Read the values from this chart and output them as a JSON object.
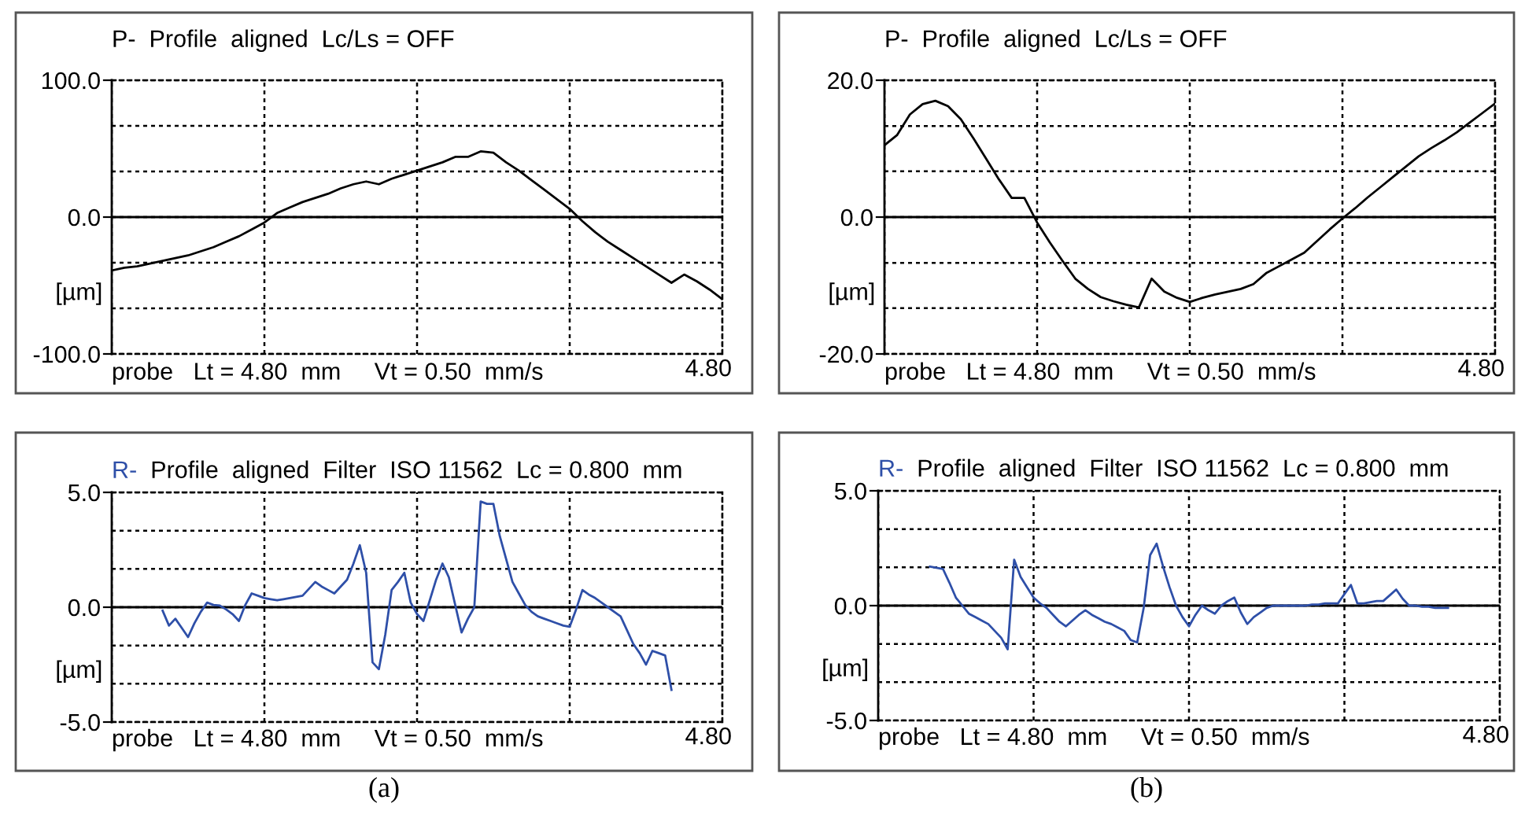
{
  "chart_data": [
    {
      "type": "line",
      "title": "P-  Profile  aligned  Lc/Ls = OFF",
      "ylabel": "[µm]",
      "grid": true,
      "categories": [
        null,
        null,
        null,
        null,
        null,
        null,
        null,
        null,
        null,
        null,
        null,
        null,
        null,
        null,
        null,
        null,
        null,
        null,
        null,
        null,
        null,
        null,
        null,
        null,
        null,
        null,
        null,
        null,
        null,
        null,
        null,
        null,
        null,
        null,
        null,
        null,
        null,
        null,
        null,
        null,
        null,
        null,
        null,
        null,
        null,
        null,
        null,
        null,
        null
      ],
      "ylim": [
        -100,
        100
      ],
      "yticks": [
        {
          "value": -100,
          "label": "-100.0"
        },
        {
          "value": -66.7,
          "label": null
        },
        {
          "value": -33.3,
          "label": null
        },
        {
          "value": 0,
          "label": "0.0"
        },
        {
          "value": 33.3,
          "label": null
        },
        {
          "value": 66.7,
          "label": null
        },
        {
          "value": 100,
          "label": "100.0"
        }
      ],
      "ref_lines": [
        {
          "axis": "y",
          "value": 0,
          "label": null,
          "color": "#000000"
        }
      ],
      "annotations": [
        "probe   Lt = 4.80  mm     Vt = 0.50  mm/s",
        "4.80"
      ],
      "series": [
        {
          "color": "#000000",
          "values": [
            -39,
            -37,
            -36,
            -34,
            -32,
            -30,
            -28,
            -25,
            -22,
            -18,
            -14,
            -9,
            -4,
            3,
            7,
            11,
            14,
            17,
            21,
            24,
            26,
            24,
            28,
            31,
            34,
            37,
            40,
            44,
            44,
            48,
            47,
            40,
            34,
            27,
            20,
            13,
            6,
            -3,
            -11,
            -18,
            -24,
            -30,
            -36,
            -42,
            -48,
            -42,
            -47,
            -53,
            -60
          ]
        }
      ]
    },
    {
      "type": "line",
      "title": "P-  Profile  aligned  Lc/Ls = OFF",
      "ylabel": "[µm]",
      "grid": true,
      "categories": [
        null,
        null,
        null,
        null,
        null,
        null,
        null,
        null,
        null,
        null,
        null,
        null,
        null,
        null,
        null,
        null,
        null,
        null,
        null,
        null,
        null,
        null,
        null,
        null,
        null,
        null,
        null,
        null,
        null,
        null,
        null,
        null,
        null,
        null,
        null,
        null,
        null,
        null,
        null,
        null,
        null,
        null,
        null,
        null,
        null,
        null,
        null,
        null,
        null
      ],
      "ylim": [
        -20,
        20
      ],
      "yticks": [
        {
          "value": -20,
          "label": "-20.0"
        },
        {
          "value": -13.3,
          "label": null
        },
        {
          "value": -6.7,
          "label": null
        },
        {
          "value": 0,
          "label": "0.0"
        },
        {
          "value": 6.7,
          "label": null
        },
        {
          "value": 13.3,
          "label": null
        },
        {
          "value": 20,
          "label": "20.0"
        }
      ],
      "ref_lines": [
        {
          "axis": "y",
          "value": 0,
          "label": null,
          "color": "#000000"
        }
      ],
      "annotations": [
        "probe   Lt = 4.80  mm     Vt = 0.50  mm/s",
        "4.80"
      ],
      "series": [
        {
          "color": "#000000",
          "values": [
            10.5,
            12,
            15,
            16.5,
            17,
            16.2,
            14.3,
            11.5,
            8.5,
            5.5,
            2.8,
            2.8,
            -0.8,
            -3.7,
            -6.4,
            -9,
            -10.5,
            -11.7,
            -12.3,
            -12.8,
            -13.2,
            -9,
            -10.9,
            -11.8,
            -12.4,
            -11.8,
            -11.3,
            -10.9,
            -10.5,
            -9.8,
            -8.2,
            -7.2,
            -6.2,
            -5.2,
            -3.5,
            -1.8,
            -0.2,
            1.3,
            2.9,
            4.4,
            5.9,
            7.4,
            8.9,
            10.1,
            11.2,
            12.4,
            13.8,
            15.2,
            16.6
          ]
        }
      ]
    },
    {
      "type": "line",
      "title": "R-  Profile  aligned  Filter  ISO 11562  Lc = 0.800  mm",
      "ylabel": "[µm]",
      "grid": true,
      "categories": [
        null,
        null,
        null,
        null,
        null,
        null,
        null,
        null,
        null,
        null,
        null,
        null,
        null,
        null,
        null,
        null,
        null,
        null,
        null,
        null,
        null,
        null,
        null,
        null,
        null,
        null,
        null,
        null,
        null,
        null,
        null,
        null,
        null,
        null,
        null,
        null,
        null,
        null,
        null,
        null,
        null,
        null,
        null,
        null,
        null,
        null,
        null,
        null,
        null,
        null,
        null,
        null,
        null,
        null,
        null,
        null,
        null,
        null,
        null,
        null,
        null,
        null,
        null,
        null,
        null,
        null,
        null,
        null,
        null,
        null,
        null,
        null,
        null,
        null,
        null,
        null,
        null,
        null,
        null,
        null,
        null,
        null,
        null,
        null,
        null,
        null,
        null,
        null,
        null,
        null,
        null,
        null,
        null,
        null,
        null,
        null,
        null
      ],
      "ylim": [
        -5,
        5
      ],
      "yticks": [
        {
          "value": -5,
          "label": "-5.0"
        },
        {
          "value": -3.33,
          "label": null
        },
        {
          "value": -1.67,
          "label": null
        },
        {
          "value": 0,
          "label": "0.0"
        },
        {
          "value": 1.67,
          "label": null
        },
        {
          "value": 3.33,
          "label": null
        },
        {
          "value": 5,
          "label": "5.0"
        }
      ],
      "ref_lines": [
        {
          "axis": "y",
          "value": 0,
          "label": null,
          "color": "#000000"
        }
      ],
      "annotations": [
        "probe   Lt = 4.80  mm     Vt = 0.50  mm/s",
        "4.80",
        "(a)"
      ],
      "series": [
        {
          "color": "#2e4fa8",
          "values": [
            null,
            null,
            null,
            null,
            null,
            null,
            null,
            null,
            -0.15,
            -0.8,
            -0.5,
            -0.9,
            -1.3,
            -0.7,
            -0.2,
            0.2,
            0.1,
            0.07,
            -0.1,
            -0.3,
            -0.6,
            0.1,
            0.6,
            0.5,
            0.4,
            0.35,
            0.3,
            0.35,
            0.4,
            0.45,
            0.5,
            0.8,
            1.1,
            0.9,
            0.75,
            0.6,
            0.9,
            1.2,
            1.9,
            2.7,
            1.5,
            -2.4,
            -2.7,
            -1.2,
            0.75,
            1.1,
            1.5,
            0.2,
            -0.3,
            -0.6,
            0.3,
            1.2,
            1.9,
            1.3,
            0.1,
            -1.1,
            -0.5,
            0,
            4.6,
            4.5,
            4.5,
            3.1,
            2.1,
            1.1,
            0.6,
            0.1,
            -0.2,
            -0.4,
            -0.5,
            -0.6,
            -0.7,
            -0.8,
            -0.85,
            -0.1,
            0.75,
            0.55,
            0.4,
            0.2,
            0,
            -0.2,
            -0.4,
            -1.0,
            -1.6,
            -2.0,
            -2.5,
            -1.9,
            -2.0,
            -2.1,
            -3.6,
            null,
            null,
            null,
            null,
            null,
            null,
            null,
            null
          ]
        }
      ]
    },
    {
      "type": "line",
      "title": "R-  Profile  aligned  Filter  ISO 11562  Lc = 0.800  mm",
      "ylabel": "[µm]",
      "grid": true,
      "categories": [
        null,
        null,
        null,
        null,
        null,
        null,
        null,
        null,
        null,
        null,
        null,
        null,
        null,
        null,
        null,
        null,
        null,
        null,
        null,
        null,
        null,
        null,
        null,
        null,
        null,
        null,
        null,
        null,
        null,
        null,
        null,
        null,
        null,
        null,
        null,
        null,
        null,
        null,
        null,
        null,
        null,
        null,
        null,
        null,
        null,
        null,
        null,
        null,
        null,
        null,
        null,
        null,
        null,
        null,
        null,
        null,
        null,
        null,
        null,
        null,
        null,
        null,
        null,
        null,
        null,
        null,
        null,
        null,
        null,
        null,
        null,
        null,
        null,
        null,
        null,
        null,
        null,
        null,
        null,
        null,
        null,
        null,
        null,
        null,
        null,
        null,
        null,
        null,
        null,
        null,
        null,
        null,
        null,
        null,
        null,
        null,
        null
      ],
      "ylim": [
        -5,
        5
      ],
      "yticks": [
        {
          "value": -5,
          "label": "-5.0"
        },
        {
          "value": -3.33,
          "label": null
        },
        {
          "value": -1.67,
          "label": null
        },
        {
          "value": 0,
          "label": "0.0"
        },
        {
          "value": 1.67,
          "label": null
        },
        {
          "value": 3.33,
          "label": null
        },
        {
          "value": 5,
          "label": "5.0"
        }
      ],
      "ref_lines": [
        {
          "axis": "y",
          "value": 0,
          "label": null,
          "color": "#000000"
        }
      ],
      "annotations": [
        "probe   Lt = 4.80  mm     Vt = 0.50  mm/s",
        "4.80",
        "(b)"
      ],
      "series": [
        {
          "color": "#2e4fa8",
          "values": [
            null,
            null,
            null,
            null,
            null,
            null,
            null,
            null,
            1.7,
            1.65,
            1.6,
            1.0,
            0.35,
            0,
            -0.35,
            -0.5,
            -0.65,
            -0.8,
            -1.1,
            -1.4,
            -1.9,
            2.0,
            1.25,
            0.8,
            0.35,
            0.1,
            -0.1,
            -0.4,
            -0.7,
            -0.9,
            -0.65,
            -0.4,
            -0.2,
            -0.4,
            -0.55,
            -0.7,
            -0.8,
            -0.95,
            -1.1,
            -1.5,
            -1.6,
            -0.1,
            2.2,
            2.7,
            1.7,
            0.8,
            0,
            -0.5,
            -0.9,
            -0.4,
            0,
            -0.2,
            -0.35,
            0,
            0.2,
            0.35,
            -0.3,
            -0.8,
            -0.5,
            -0.3,
            -0.1,
            0,
            0,
            0,
            0,
            0,
            0,
            0.05,
            0.05,
            0.1,
            0.1,
            0.1,
            0.5,
            0.9,
            0.1,
            0.1,
            0.15,
            0.2,
            0.2,
            0.45,
            0.7,
            0.3,
            0,
            0,
            -0.05,
            -0.05,
            -0.1,
            -0.1,
            -0.1,
            null,
            null,
            null,
            null,
            null,
            null,
            null,
            null
          ]
        }
      ]
    }
  ]
}
